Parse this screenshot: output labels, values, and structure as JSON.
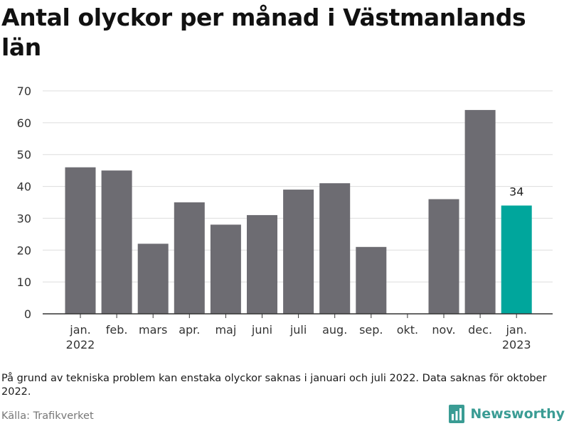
{
  "title": "Antal olyckor per månad i Västmanlands län",
  "note": "På grund av tekniska problem kan enstaka olyckor saknas i januari och juli 2022. Data saknas för oktober 2022.",
  "source": "Källa: Trafikverket",
  "brand": {
    "name": "Newsworthy",
    "logo_icon": "newsworthy-chart-logo-icon"
  },
  "colors": {
    "bar": "#6d6c72",
    "highlight": "#00a69c",
    "grid": "#dddddd",
    "axis": "#333333",
    "brand": "#3a9c94"
  },
  "chart_data": {
    "type": "bar",
    "title": "Antal olyckor per månad i Västmanlands län",
    "categories": [
      [
        "jan.",
        "2022"
      ],
      [
        "feb."
      ],
      [
        "mars"
      ],
      [
        "apr."
      ],
      [
        "maj"
      ],
      [
        "juni"
      ],
      [
        "juli"
      ],
      [
        "aug."
      ],
      [
        "sep."
      ],
      [
        "okt."
      ],
      [
        "nov."
      ],
      [
        "dec."
      ],
      [
        "jan.",
        "2023"
      ]
    ],
    "values": [
      46,
      45,
      22,
      35,
      28,
      31,
      39,
      41,
      21,
      null,
      36,
      64,
      34
    ],
    "highlight_index": 12,
    "data_labels": [
      null,
      null,
      null,
      null,
      null,
      null,
      null,
      null,
      null,
      null,
      null,
      null,
      "34"
    ],
    "yticks": [
      0,
      10,
      20,
      30,
      40,
      50,
      60,
      70
    ],
    "ylim": [
      0,
      70
    ],
    "xlabel": "",
    "ylabel": "",
    "grid": true,
    "legend": false
  }
}
